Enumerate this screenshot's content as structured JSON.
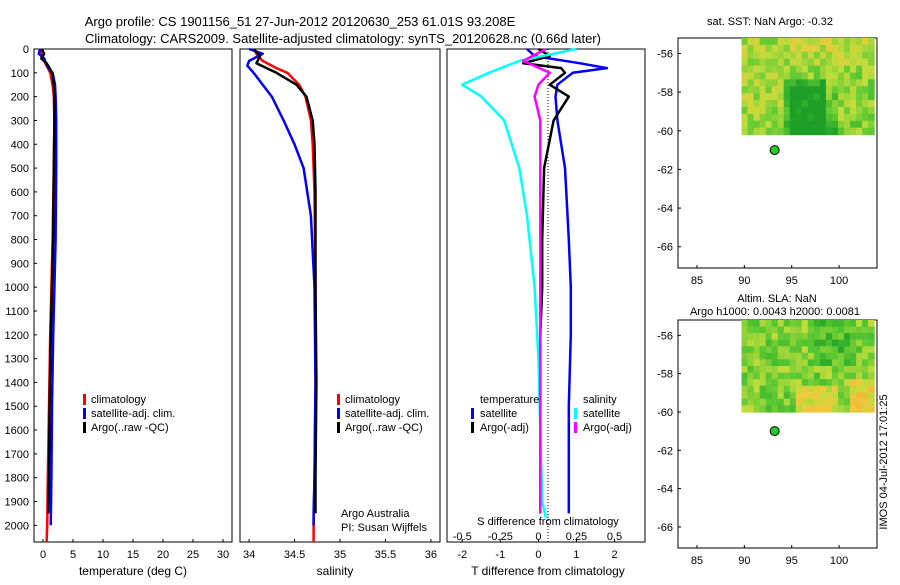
{
  "header": {
    "title_line1": "Argo profile: CS 1901156_51 27-Jun-2012 20120630_253 61.01S 93.208E",
    "title_line2": "Climatology: CARS2009. Satellite-adjusted climatology: synTS_20120628.nc (0.66d later)"
  },
  "timestamp": "IMOS 04-Jul-2012 17:01:25",
  "colors": {
    "red": "#ff0000",
    "blue": "#0000ff",
    "black": "#000000",
    "cyan": "#00ffff",
    "magenta": "#ff00ff",
    "axes": "#000000"
  },
  "chart_data": [
    {
      "type": "line",
      "id": "temperature",
      "xlabel": "temperature (deg C)",
      "xticks": [
        "0",
        "5",
        "10",
        "15",
        "20",
        "25",
        "30"
      ],
      "xlim": [
        -1.5,
        31.5
      ],
      "ylim": [
        0,
        2070
      ],
      "yticks": [
        "0",
        "100",
        "200",
        "300",
        "400",
        "500",
        "600",
        "700",
        "800",
        "900",
        "1000",
        "1100",
        "1200",
        "1300",
        "1400",
        "1500",
        "1600",
        "1700",
        "1800",
        "1900",
        "2000"
      ],
      "legend": [
        "climatology",
        "satellite-adj. clim.",
        "Argo(..raw -QC)"
      ],
      "series": [
        {
          "name": "climatology",
          "color": "red",
          "depth": [
            0,
            20,
            50,
            80,
            100,
            150,
            200,
            300,
            500,
            800,
            1000,
            1200,
            1500,
            1800,
            2000,
            2070
          ],
          "values": [
            -0.5,
            -0.3,
            0.2,
            0.8,
            1.2,
            1.6,
            1.8,
            1.9,
            1.8,
            1.6,
            1.4,
            1.2,
            1.0,
            0.8,
            0.7,
            0.6
          ]
        },
        {
          "name": "satellite-adj. clim.",
          "color": "blue",
          "depth": [
            0,
            20,
            40,
            60,
            80,
            100,
            150,
            200,
            300,
            500,
            800,
            1000,
            1200,
            1500,
            1800,
            1980,
            2000
          ],
          "values": [
            -0.5,
            -0.7,
            0.2,
            0.5,
            0.9,
            1.6,
            2.0,
            2.1,
            2.2,
            2.2,
            2.1,
            1.9,
            1.7,
            1.5,
            1.4,
            1.3,
            1.3
          ]
        },
        {
          "name": "Argo(..raw -QC)",
          "color": "black",
          "depth": [
            0,
            20,
            40,
            60,
            80,
            100,
            150,
            200,
            300,
            500,
            800,
            1000,
            1200,
            1500,
            1800,
            1950
          ],
          "values": [
            -0.2,
            0.2,
            -0.3,
            0.6,
            1.1,
            1.5,
            1.8,
            1.9,
            1.9,
            1.8,
            1.7,
            1.5,
            1.3,
            1.1,
            1.0,
            0.9
          ]
        }
      ]
    },
    {
      "type": "line",
      "id": "salinity",
      "xlabel": "salinity",
      "xticks": [
        "34",
        "34.5",
        "35",
        "35.5",
        "36"
      ],
      "xlim": [
        33.9,
        36.1
      ],
      "ylim": [
        0,
        2070
      ],
      "legend": [
        "climatology",
        "satellite-adj. clim.",
        "Argo(..raw -QC)"
      ],
      "annotation": [
        "Argo Australia",
        "PI: Susan Wijffels"
      ],
      "series": [
        {
          "name": "climatology",
          "color": "red",
          "depth": [
            0,
            20,
            50,
            80,
            100,
            150,
            200,
            300,
            400,
            600,
            1000,
            1400,
            1800,
            2000,
            2070
          ],
          "values": [
            34.05,
            34.08,
            34.15,
            34.3,
            34.42,
            34.55,
            34.62,
            34.68,
            34.7,
            34.72,
            34.73,
            34.73,
            34.72,
            34.71,
            34.71
          ]
        },
        {
          "name": "satellite-adj. clim.",
          "color": "blue",
          "depth": [
            0,
            20,
            50,
            70,
            100,
            150,
            200,
            300,
            400,
            500,
            700,
            1000,
            1400,
            1800,
            1950,
            2000
          ],
          "values": [
            34.0,
            34.15,
            34.0,
            33.98,
            34.05,
            34.15,
            34.25,
            34.38,
            34.5,
            34.6,
            34.68,
            34.72,
            34.73,
            34.72,
            34.71,
            34.71
          ]
        },
        {
          "name": "Argo(..raw -QC)",
          "color": "black",
          "depth": [
            0,
            30,
            60,
            100,
            150,
            200,
            300,
            400,
            600,
            1000,
            1400,
            1800,
            1950
          ],
          "values": [
            34.05,
            34.12,
            34.08,
            34.3,
            34.52,
            34.63,
            34.7,
            34.72,
            34.73,
            34.73,
            34.74,
            34.73,
            34.73
          ]
        }
      ]
    },
    {
      "type": "line",
      "id": "difference",
      "xlabel": "T difference from climatology",
      "xlabel_top": "S difference from climatology",
      "xticks_T": [
        "-2",
        "-1",
        "0",
        "1",
        "2"
      ],
      "xlim_T": [
        -2.4,
        2.8
      ],
      "xticks_S": [
        "-0.5",
        "-0.25",
        "0",
        "0.25",
        "0.5"
      ],
      "legend_headers": [
        "temperature",
        "salinity"
      ],
      "legend_left": [
        "satellite",
        "Argo(-adj)"
      ],
      "legend_right": [
        "satellite",
        "Argo(-adj)"
      ],
      "series": [
        {
          "name": "temperature satellite",
          "color": "blue",
          "depth": [
            0,
            30,
            60,
            80,
            100,
            150,
            200,
            300,
            500,
            800,
            1000,
            1200,
            1500,
            1800,
            1950
          ],
          "values": [
            -0.3,
            -0.1,
            1.1,
            1.8,
            0.9,
            0.5,
            0.45,
            0.5,
            0.7,
            0.8,
            0.85,
            0.85,
            0.8,
            0.8,
            0.8
          ]
        },
        {
          "name": "temperature Argo(-adj)",
          "color": "black",
          "depth": [
            0,
            30,
            60,
            80,
            100,
            150,
            200,
            300,
            500,
            800,
            1000,
            1200,
            1500,
            1800,
            1950
          ],
          "values": [
            0,
            0.3,
            -0.4,
            0.6,
            0.7,
            0.3,
            0.8,
            0.4,
            0.15,
            0.1,
            0.1,
            0.05,
            0.05,
            0.05,
            0.05
          ]
        },
        {
          "name": "salinity satellite",
          "color": "cyan",
          "depth": [
            0,
            50,
            100,
            150,
            200,
            300,
            400,
            500,
            700,
            1000,
            1300,
            1600,
            1900,
            1970
          ],
          "values": [
            1.0,
            -0.5,
            -1.3,
            -2.0,
            -1.5,
            -0.9,
            -0.7,
            -0.5,
            -0.3,
            -0.1,
            0.0,
            0.05,
            0.1,
            0.2
          ]
        },
        {
          "name": "salinity Argo(-adj)",
          "color": "magenta",
          "depth": [
            0,
            50,
            100,
            150,
            200,
            300,
            600,
            1000,
            1400,
            1800,
            1950
          ],
          "values": [
            0.2,
            -0.4,
            0.3,
            0.0,
            -0.1,
            0.05,
            0.05,
            0.05,
            0.05,
            0.05,
            0.05
          ]
        }
      ]
    },
    {
      "type": "heatmap",
      "id": "sst-map",
      "title": "sat. SST: NaN Argo: -0.32",
      "xticks": [
        "85",
        "90",
        "95",
        "100"
      ],
      "xlim": [
        83,
        104
      ],
      "yticks": [
        "-56",
        "-58",
        "-60",
        "-62",
        "-64",
        "-66"
      ],
      "ylim": [
        -67.1,
        -55.2
      ],
      "data_extent": {
        "lon": [
          89.7,
          103.7
        ],
        "lat": [
          -60.2,
          -55.2
        ]
      },
      "argo_position": {
        "lon": 93.2,
        "lat": -61.0
      }
    },
    {
      "type": "heatmap",
      "id": "sla-map",
      "title_line1": "Altim. SLA: NaN",
      "title_line2": "Argo h1000: 0.0043 h2000: 0.0081",
      "xticks": [
        "85",
        "90",
        "95",
        "100"
      ],
      "xlim": [
        83,
        104
      ],
      "yticks": [
        "-56",
        "-58",
        "-60",
        "-62",
        "-64",
        "-66"
      ],
      "ylim": [
        -67.1,
        -55.2
      ],
      "data_extent": {
        "lon": [
          89.7,
          103.7
        ],
        "lat": [
          -60.0,
          -55.2
        ]
      },
      "argo_position": {
        "lon": 93.2,
        "lat": -61.0
      }
    }
  ]
}
